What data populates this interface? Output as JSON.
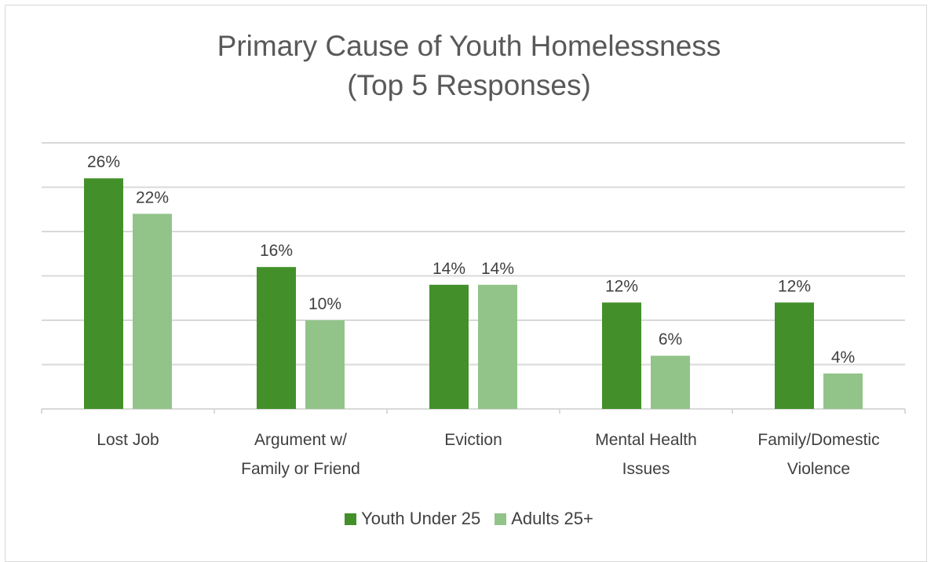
{
  "chart_data": {
    "type": "bar",
    "title": "Primary Cause of Youth Homelessness",
    "subtitle": "(Top 5 Responses)",
    "categories": [
      [
        "Lost Job"
      ],
      [
        "Argument w/",
        "Family or Friend"
      ],
      [
        "Eviction"
      ],
      [
        "Mental Health",
        "Issues"
      ],
      [
        "Family/Domestic",
        "Violence"
      ]
    ],
    "series": [
      {
        "name": "Youth Under 25",
        "color": "#43902a",
        "values": [
          26,
          16,
          14,
          12,
          12
        ],
        "labels": [
          "26%",
          "16%",
          "14%",
          "12%",
          "12%"
        ]
      },
      {
        "name": "Adults 25+",
        "color": "#92c489",
        "values": [
          22,
          10,
          14,
          6,
          4
        ],
        "labels": [
          "22%",
          "10%",
          "14%",
          "6%",
          "4%"
        ]
      }
    ],
    "ylim": [
      0,
      30
    ],
    "y_axis_visible": false,
    "grid": true,
    "gridline_color": "#d9d9d9",
    "legend_position": "bottom",
    "data_labels": true
  }
}
